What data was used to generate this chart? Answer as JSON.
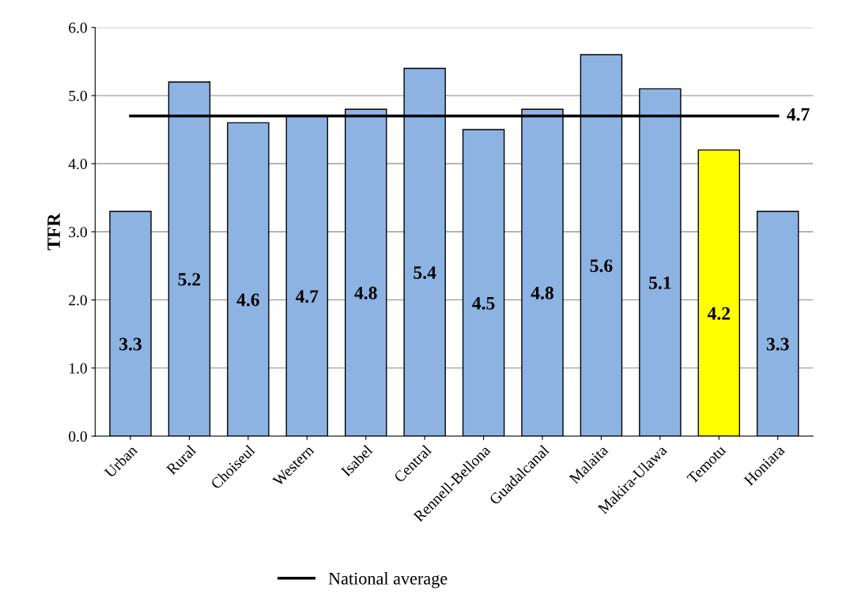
{
  "chart_data": {
    "type": "bar",
    "ylabel": "TFR",
    "categories": [
      "Urban",
      "Rural",
      "Choiseul",
      "Western",
      "Isabel",
      "Central",
      "Rennell-Bellona",
      "Guadalcanal",
      "Malaita",
      "Makira-Ulawa",
      "Temotu",
      "Honiara"
    ],
    "series": [
      {
        "values": [
          3.3,
          5.2,
          4.6,
          4.7,
          4.8,
          5.4,
          4.5,
          4.8,
          5.6,
          5.1,
          4.2,
          3.3
        ],
        "colors": [
          "#8db3e2",
          "#8db3e2",
          "#8db3e2",
          "#8db3e2",
          "#8db3e2",
          "#8db3e2",
          "#8db3e2",
          "#8db3e2",
          "#8db3e2",
          "#8db3e2",
          "#ffff00",
          "#8db3e2"
        ]
      },
      {
        "type": "line",
        "name": "National average",
        "color": "#000000",
        "values": [
          4.7,
          4.7,
          4.7,
          4.7,
          4.7,
          4.7,
          4.7,
          4.7,
          4.7,
          4.7,
          4.7,
          4.7
        ],
        "value_labels": [
          null,
          null,
          null,
          null,
          null,
          null,
          null,
          null,
          null,
          null,
          null,
          "4.7"
        ]
      }
    ],
    "data_labels": true,
    "ylim": [
      0,
      6
    ],
    "yticks": [
      "0.0",
      "1.0",
      "2.0",
      "3.0",
      "4.0",
      "5.0",
      "6.0"
    ],
    "grid": "y",
    "legend": "bottom",
    "marker": "none"
  }
}
